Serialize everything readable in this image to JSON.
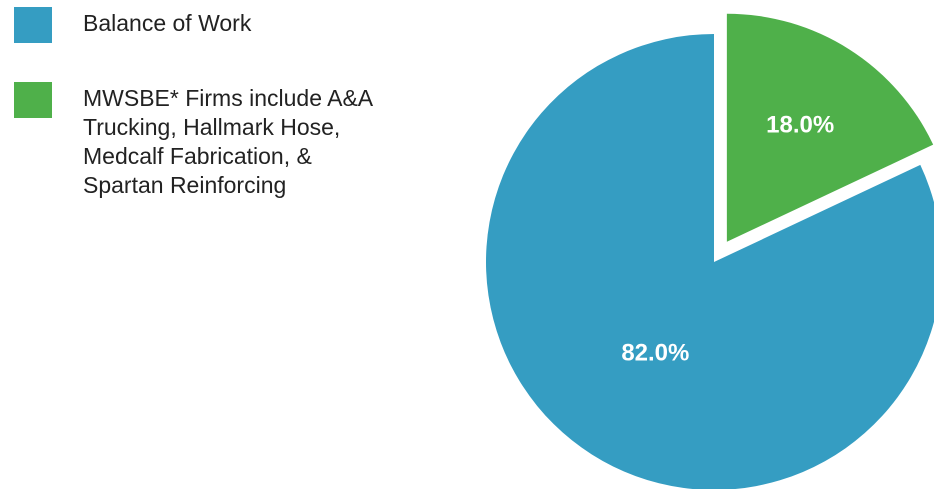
{
  "chart_data": {
    "type": "pie",
    "categories": [
      "Balance of Work",
      "MWSBE* Firms include A&A Trucking, Hallmark Hose, Medcalf Fabrication, & Spartan Reinforcing"
    ],
    "values": [
      82.0,
      18.0
    ],
    "data_labels": [
      "82.0%",
      "18.0%"
    ],
    "colors": [
      "#359dc2",
      "#4fb04a"
    ],
    "exploded": [
      false,
      true
    ],
    "legend_position": "left"
  }
}
